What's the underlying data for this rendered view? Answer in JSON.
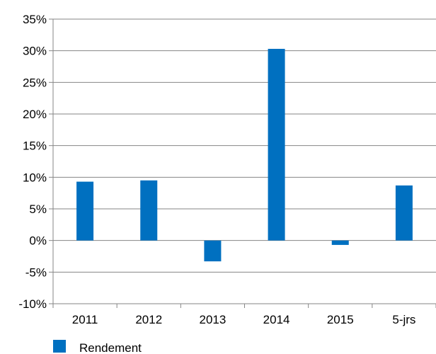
{
  "chart_data": {
    "type": "bar",
    "categories": [
      "2011",
      "2012",
      "2013",
      "2014",
      "2015",
      "5-jrs"
    ],
    "series": [
      {
        "name": "Rendement",
        "values": [
          9.3,
          9.5,
          -3.3,
          30.3,
          -0.7,
          8.7
        ]
      }
    ],
    "y_ticks": [
      "-10%",
      "-5%",
      "0%",
      "5%",
      "10%",
      "15%",
      "20%",
      "25%",
      "30%",
      "35%"
    ],
    "ylim": [
      -10,
      35
    ],
    "y_unit": "%",
    "grid": true,
    "legend_position": "bottom-left",
    "bar_color": "#0070c0"
  }
}
